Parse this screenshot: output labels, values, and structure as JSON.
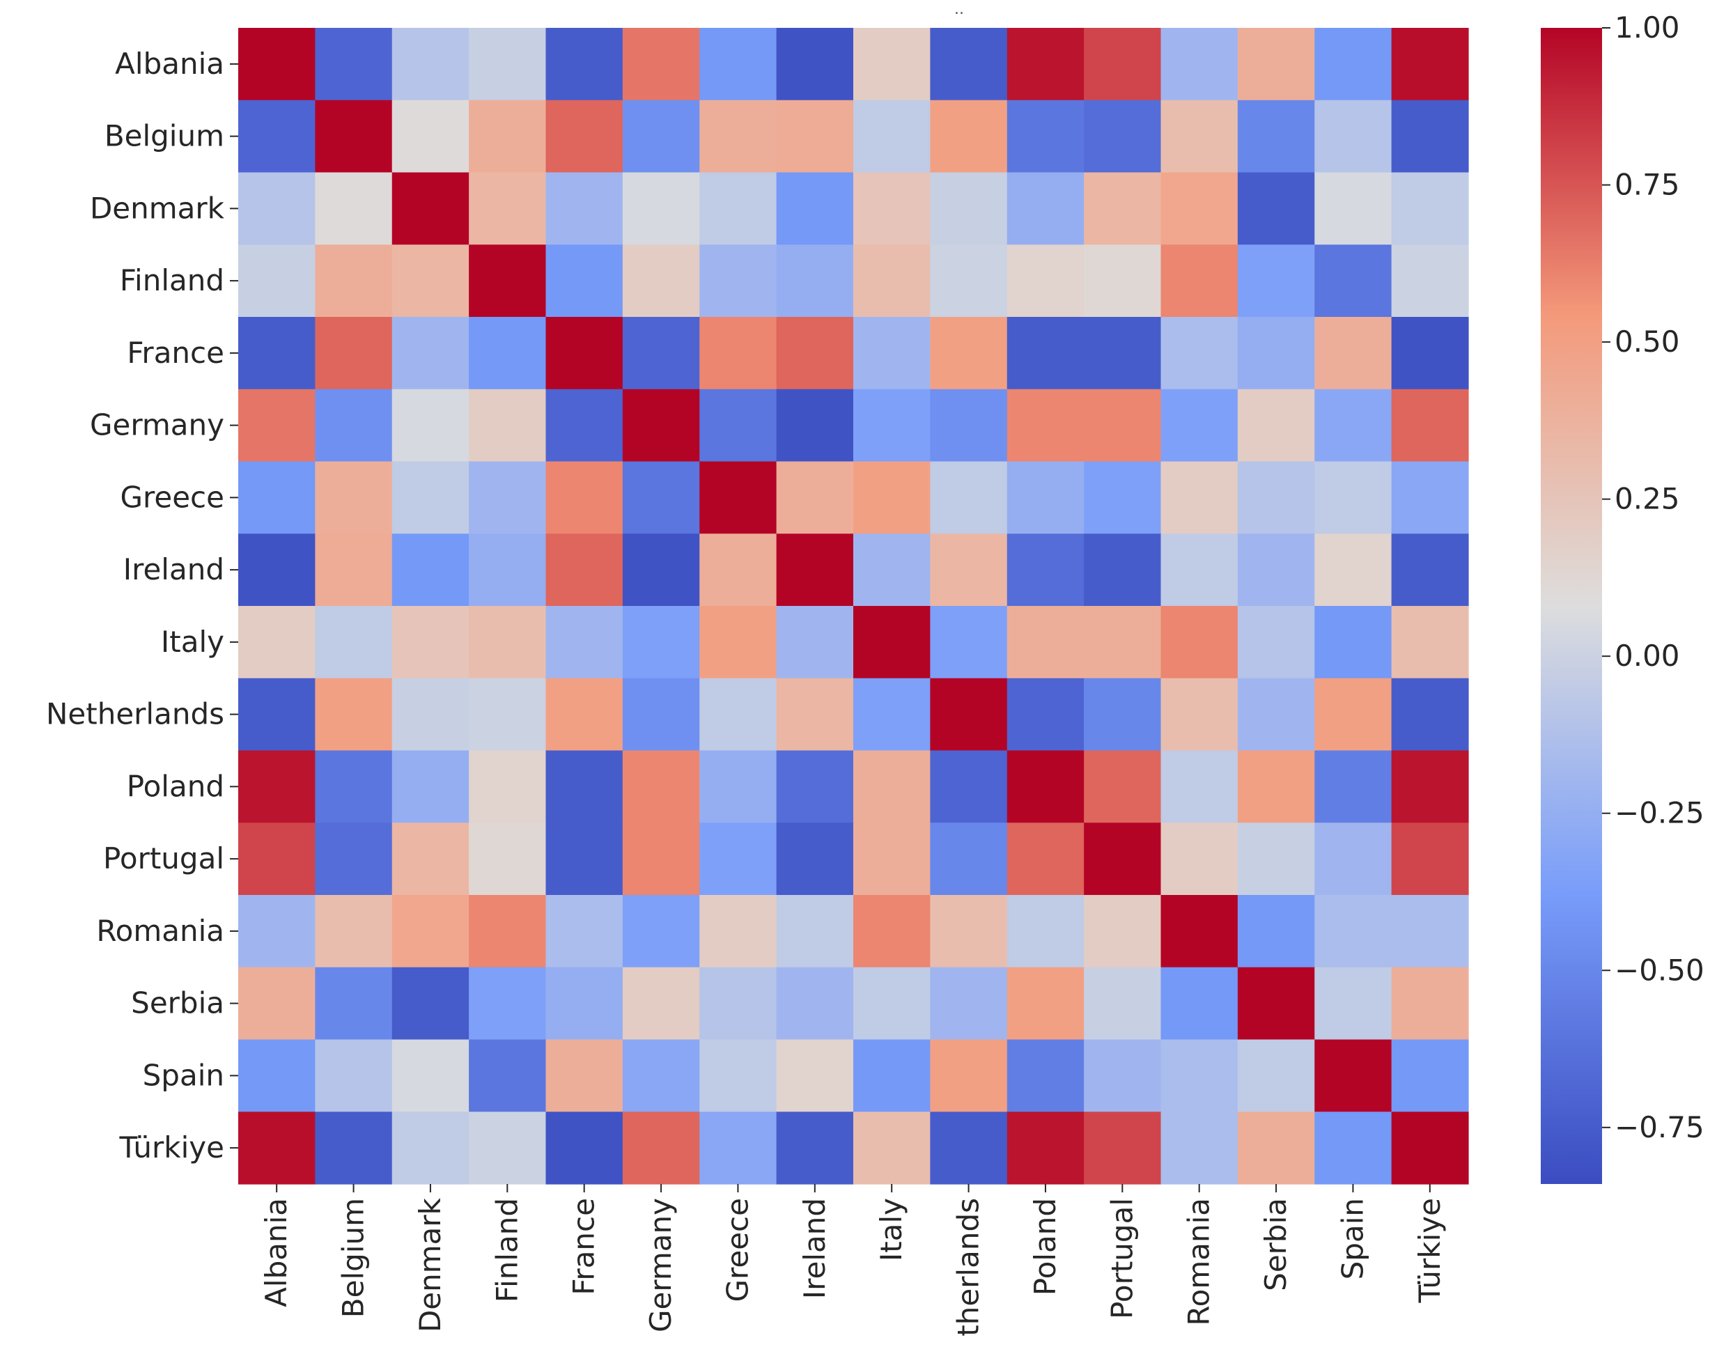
{
  "chart_data": {
    "type": "heatmap",
    "title": "..",
    "xlabel": "",
    "ylabel": "",
    "row_labels": [
      "Albania",
      "Belgium",
      "Denmark",
      "Finland",
      "France",
      "Germany",
      "Greece",
      "Ireland",
      "Italy",
      "Netherlands",
      "Poland",
      "Portugal",
      "Romania",
      "Serbia",
      "Spain",
      "Türkiye"
    ],
    "col_labels": [
      "Albania",
      "Belgium",
      "Denmark",
      "Finland",
      "France",
      "Germany",
      "Greece",
      "Ireland",
      "Italy",
      "therlands",
      "Poland",
      "Portugal",
      "Romania",
      "Serbia",
      "Spain",
      "Türkiye"
    ],
    "values": [
      [
        1.0,
        -0.7,
        -0.1,
        -0.02,
        -0.75,
        0.65,
        -0.4,
        -0.8,
        0.2,
        -0.75,
        0.95,
        0.8,
        -0.2,
        0.4,
        -0.4,
        0.97
      ],
      [
        -0.7,
        1.0,
        0.1,
        0.4,
        0.7,
        -0.45,
        0.4,
        0.42,
        -0.05,
        0.5,
        -0.6,
        -0.65,
        0.3,
        -0.5,
        -0.1,
        -0.75
      ],
      [
        -0.1,
        0.1,
        1.0,
        0.35,
        -0.2,
        0.05,
        -0.05,
        -0.4,
        0.25,
        -0.02,
        -0.25,
        0.35,
        0.45,
        -0.75,
        0.05,
        -0.05
      ],
      [
        -0.02,
        0.4,
        0.35,
        1.0,
        -0.4,
        0.2,
        -0.2,
        -0.25,
        0.3,
        0.0,
        0.15,
        0.12,
        0.6,
        -0.35,
        -0.6,
        0.0
      ],
      [
        -0.75,
        0.7,
        -0.2,
        -0.4,
        1.0,
        -0.7,
        0.6,
        0.7,
        -0.2,
        0.5,
        -0.75,
        -0.75,
        -0.15,
        -0.25,
        0.4,
        -0.8
      ],
      [
        0.65,
        -0.45,
        0.05,
        0.2,
        -0.7,
        1.0,
        -0.6,
        -0.8,
        -0.35,
        -0.45,
        0.6,
        0.6,
        -0.35,
        0.2,
        -0.3,
        0.7
      ],
      [
        -0.4,
        0.4,
        -0.05,
        -0.2,
        0.6,
        -0.6,
        1.0,
        0.4,
        0.5,
        -0.05,
        -0.25,
        -0.35,
        0.2,
        -0.1,
        -0.05,
        -0.3
      ],
      [
        -0.8,
        0.42,
        -0.4,
        -0.25,
        0.7,
        -0.8,
        0.4,
        1.0,
        -0.2,
        0.35,
        -0.65,
        -0.75,
        -0.05,
        -0.2,
        0.15,
        -0.75
      ],
      [
        0.2,
        -0.05,
        0.25,
        0.3,
        -0.2,
        -0.35,
        0.5,
        -0.2,
        1.0,
        -0.35,
        0.4,
        0.4,
        0.6,
        -0.1,
        -0.4,
        0.3
      ],
      [
        -0.75,
        0.5,
        -0.02,
        0.0,
        0.5,
        -0.45,
        -0.05,
        0.35,
        -0.35,
        1.0,
        -0.7,
        -0.5,
        0.3,
        -0.2,
        0.5,
        -0.75
      ],
      [
        0.95,
        -0.6,
        -0.25,
        0.15,
        -0.75,
        0.6,
        -0.25,
        -0.65,
        0.4,
        -0.7,
        1.0,
        0.7,
        -0.05,
        0.5,
        -0.55,
        0.95
      ],
      [
        0.8,
        -0.65,
        0.35,
        0.12,
        -0.75,
        0.6,
        -0.35,
        -0.75,
        0.4,
        -0.5,
        0.7,
        1.0,
        0.2,
        -0.02,
        -0.2,
        0.8
      ],
      [
        -0.2,
        0.3,
        0.45,
        0.6,
        -0.15,
        -0.35,
        0.2,
        -0.05,
        0.6,
        0.3,
        -0.05,
        0.2,
        1.0,
        -0.4,
        -0.15,
        -0.15
      ],
      [
        0.4,
        -0.5,
        -0.75,
        -0.35,
        -0.25,
        0.2,
        -0.1,
        -0.2,
        -0.05,
        -0.2,
        0.5,
        -0.02,
        -0.4,
        1.0,
        -0.05,
        0.4
      ],
      [
        -0.4,
        -0.1,
        0.05,
        -0.6,
        0.4,
        -0.3,
        -0.05,
        0.15,
        -0.4,
        0.5,
        -0.55,
        -0.2,
        -0.15,
        -0.05,
        1.0,
        -0.4
      ],
      [
        0.97,
        -0.75,
        -0.05,
        0.0,
        -0.8,
        0.7,
        -0.3,
        -0.75,
        0.3,
        -0.75,
        0.95,
        0.8,
        -0.15,
        0.4,
        -0.4,
        1.0
      ]
    ],
    "vmin": -0.84,
    "vmax": 1.0,
    "colormap": "coolwarm",
    "colorbar_ticks": [
      1.0,
      0.75,
      0.5,
      0.25,
      0.0,
      -0.25,
      -0.5,
      -0.75
    ],
    "colorbar_tick_labels": [
      "1.00",
      "0.75",
      "0.50",
      "0.25",
      "0.00",
      "−0.25",
      "−0.50",
      "−0.75"
    ],
    "legend_position": "right"
  }
}
